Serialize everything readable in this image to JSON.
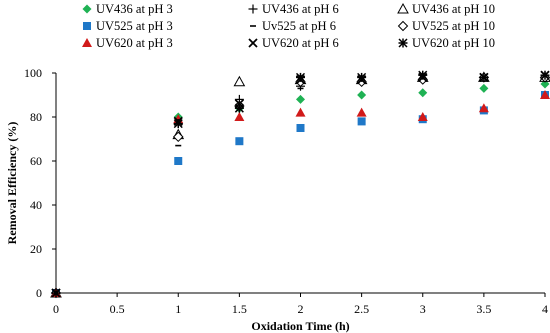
{
  "chart_data": {
    "type": "scatter",
    "xlabel": "Oxidation Time (h)",
    "ylabel": "Removal Efficiency (%)",
    "xlim": [
      0,
      4
    ],
    "ylim": [
      0,
      100
    ],
    "xticks": [
      "0",
      "0.5",
      "1",
      "1.5",
      "2",
      "2.5",
      "3",
      "3.5",
      "4"
    ],
    "yticks": [
      "0",
      "20",
      "40",
      "60",
      "80",
      "100"
    ],
    "grid": false,
    "legend_position": "top",
    "series": [
      {
        "name": "UV436 at pH 3",
        "marker": "diamond",
        "color": "#1fb254",
        "x": [
          0,
          1,
          1.5,
          2,
          2.5,
          3,
          3.5,
          4
        ],
        "y": [
          0,
          80,
          84,
          88,
          90,
          91,
          93,
          95
        ]
      },
      {
        "name": "UV436 at pH 6",
        "marker": "plus",
        "color": "#000000",
        "x": [
          0,
          1,
          1.5,
          2,
          2.5,
          3,
          3.5,
          4
        ],
        "y": [
          0,
          77,
          88,
          94,
          96,
          97,
          98,
          98
        ]
      },
      {
        "name": "UV436 at pH 10",
        "marker": "triangle-open",
        "color": "#000000",
        "x": [
          0,
          1,
          1.5,
          2,
          2.5,
          3,
          3.5,
          4
        ],
        "y": [
          0,
          72,
          96,
          97,
          97,
          98,
          98,
          98
        ]
      },
      {
        "name": "UV525 at pH 3",
        "marker": "square",
        "color": "#1f78c8",
        "x": [
          0,
          1,
          1.5,
          2,
          2.5,
          3,
          3.5,
          4
        ],
        "y": [
          0,
          60,
          69,
          75,
          78,
          79,
          83,
          90
        ]
      },
      {
        "name": "Uv525 at pH 6",
        "marker": "dash",
        "color": "#000000",
        "x": [
          0,
          1,
          1.5,
          2,
          2.5,
          3,
          3.5,
          4
        ],
        "y": [
          0,
          67,
          86,
          93,
          96,
          97,
          98,
          98
        ]
      },
      {
        "name": "UV525 at pH 10",
        "marker": "diamond-open",
        "color": "#000000",
        "x": [
          0,
          1,
          1.5,
          2,
          2.5,
          3,
          3.5,
          4
        ],
        "y": [
          0,
          71,
          85,
          96,
          96,
          97,
          98,
          98
        ]
      },
      {
        "name": "UV620 at pH 3",
        "marker": "triangle",
        "color": "#d11a1a",
        "x": [
          0,
          1,
          1.5,
          2,
          2.5,
          3,
          3.5,
          4
        ],
        "y": [
          0,
          79,
          80,
          82,
          82,
          80,
          84,
          90
        ]
      },
      {
        "name": "UV620 at pH 6",
        "marker": "x",
        "color": "#000000",
        "x": [
          0,
          1,
          1.5,
          2,
          2.5,
          3,
          3.5,
          4
        ],
        "y": [
          0,
          78,
          86,
          97,
          97,
          98,
          98,
          99
        ]
      },
      {
        "name": "UV620 at pH 10",
        "marker": "asterisk",
        "color": "#000000",
        "x": [
          0,
          1,
          1.5,
          2,
          2.5,
          3,
          3.5,
          4
        ],
        "y": [
          0,
          77,
          84,
          98,
          98,
          99,
          98,
          99
        ]
      }
    ]
  }
}
